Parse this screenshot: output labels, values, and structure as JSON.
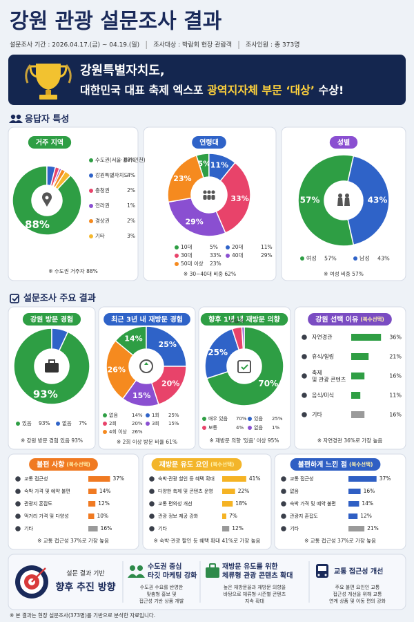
{
  "header": {
    "title": "강원 관광 설문조사 결과",
    "meta": [
      "설문조사 기간 : 2026.04.17.(금) ~ 04.19.(일)",
      "조사대상 : 박람회 현장 관람객",
      "조사인원 : 총 373명"
    ]
  },
  "banner": {
    "line1": "강원특별자치도,",
    "line2": "대한민국 대표 축제 엑스포 ",
    "highlight": "광역지자체 부문 ‘대상’",
    "line2_end": " 수상!"
  },
  "sections": [
    "응답자 특성",
    "설문조사 주요 결과"
  ],
  "chart_data": [
    {
      "type": "pie",
      "title": "거주 지역",
      "title_color": "#2e9e44",
      "categories": [
        "수도권(서울·경기·인천)",
        "강원특별자치도",
        "충청권",
        "전라권",
        "경상권",
        "기타"
      ],
      "values": [
        88,
        4,
        2,
        1,
        2,
        3
      ],
      "value_labels": [
        "88%",
        "4%",
        "2%",
        "1%",
        "2%",
        "3%"
      ],
      "colors": [
        "#2e9e44",
        "#2f63c8",
        "#e8436a",
        "#8a4fd1",
        "#f58a1f",
        "#f5b82e"
      ],
      "note": "※ 수도권 거주자 88%"
    },
    {
      "type": "pie",
      "title": "연령대",
      "title_color": "#2f63c8",
      "categories": [
        "10대",
        "20대",
        "30대",
        "40대",
        "50대 이상"
      ],
      "values": [
        5,
        11,
        33,
        29,
        23
      ],
      "value_labels": [
        "5%",
        "11%",
        "33%",
        "29%",
        "23%"
      ],
      "colors": [
        "#2e9e44",
        "#2f63c8",
        "#e8436a",
        "#8a4fd1",
        "#f58a1f"
      ],
      "note": "※ 30~40대 비중 62%"
    },
    {
      "type": "pie",
      "title": "성별",
      "title_color": "#8a4fd1",
      "categories": [
        "여성",
        "남성"
      ],
      "values": [
        57,
        43
      ],
      "value_labels": [
        "57%",
        "43%"
      ],
      "colors": [
        "#2e9e44",
        "#2f63c8"
      ],
      "note": "※ 여성 비중 57%"
    },
    {
      "type": "pie",
      "title": "강원 방문 경험",
      "title_color": "#2e9e44",
      "categories": [
        "있음",
        "없음"
      ],
      "values": [
        93,
        7
      ],
      "value_labels": [
        "93%",
        "7%"
      ],
      "colors": [
        "#2e9e44",
        "#2f63c8"
      ],
      "note": "※ 강원 방문 경험 있음 93%"
    },
    {
      "type": "pie",
      "title": "최근 3년 내 재방문 경험",
      "title_color": "#2f63c8",
      "categories": [
        "없음",
        "1회",
        "2회",
        "3회",
        "4회 이상"
      ],
      "values": [
        14,
        25,
        20,
        15,
        26
      ],
      "value_labels": [
        "14%",
        "25%",
        "20%",
        "15%",
        "26%"
      ],
      "colors": [
        "#2e9e44",
        "#2f63c8",
        "#e8436a",
        "#8a4fd1",
        "#f58a1f"
      ],
      "note": "※ 2회 이상 방문 비율 61%"
    },
    {
      "type": "pie",
      "title": "향후 1년 내 재방문 의향",
      "title_color": "#2e9e44",
      "categories": [
        "매우 있음",
        "있음",
        "보통",
        "없음"
      ],
      "values": [
        70,
        25,
        4,
        1
      ],
      "value_labels": [
        "70%",
        "25%",
        "4%",
        "1%"
      ],
      "colors": [
        "#2e9e44",
        "#2f63c8",
        "#e8436a",
        "#8a4fd1"
      ],
      "note": "※ 재방문 의향 '있음' 이상 95%"
    },
    {
      "type": "bar",
      "title": "강원 선택 이유",
      "subtitle": "(복수선택)",
      "title_color": "#7a4cc2",
      "categories": [
        "자연경관",
        "휴식/힐링",
        "축제 및 관광 콘텐츠",
        "음식/미식",
        "기타"
      ],
      "values": [
        36,
        21,
        16,
        11,
        16
      ],
      "value_labels": [
        "36%",
        "21%",
        "16%",
        "11%",
        "16%"
      ],
      "colors": [
        "#2f9e44",
        "#2f9e44",
        "#2f9e44",
        "#2f9e44",
        "#9a9a9a"
      ],
      "note": "※ 자연경관 36%로 가장 높음"
    },
    {
      "type": "bar",
      "title": "불편 사항",
      "subtitle": "(복수선택)",
      "title_color": "#f07a22",
      "categories": [
        "교통 접근성",
        "숙박 가격 및 예약 불편",
        "관광지 혼잡도",
        "먹거리 가격 및 다양성",
        "기타"
      ],
      "values": [
        37,
        14,
        12,
        10,
        16
      ],
      "value_labels": [
        "37%",
        "14%",
        "12%",
        "10%",
        "16%"
      ],
      "colors": [
        "#f07a22",
        "#f07a22",
        "#f07a22",
        "#f07a22",
        "#9a9a9a"
      ],
      "note": "※ 교통 접근성 37%로 가장 높음"
    },
    {
      "type": "bar",
      "title": "재방문 유도 요인",
      "subtitle": "(복수선택)",
      "title_color": "#f3b52a",
      "categories": [
        "숙박·관광 할인 등 혜택 확대",
        "다양한 축제 및 콘텐츠 운영",
        "교통 편의성 개선",
        "관광 정보 제공 강화",
        "기타"
      ],
      "values": [
        41,
        22,
        18,
        7,
        12
      ],
      "value_labels": [
        "41%",
        "22%",
        "18%",
        "7%",
        "12%"
      ],
      "colors": [
        "#f5b324",
        "#f5b324",
        "#f5b324",
        "#f5b324",
        "#9a9a9a"
      ],
      "note": "※ 숙박·관광 할인 등 혜택 확대 41%로 가장 높음"
    },
    {
      "type": "bar",
      "title": "불편하게 느낀 점",
      "subtitle": "(복수선택)",
      "title_color": "#2f5fc4",
      "categories": [
        "교통 접근성",
        "없음",
        "숙박 가격 및 예약 불편",
        "관광지 혼잡도",
        "기타"
      ],
      "values": [
        37,
        16,
        14,
        12,
        21
      ],
      "value_labels": [
        "37%",
        "16%",
        "14%",
        "12%",
        "21%"
      ],
      "colors": [
        "#2f5fc4",
        "#2f5fc4",
        "#2f5fc4",
        "#2f5fc4",
        "#9a9a9a"
      ],
      "note": "※ 교통 접근성 37%로 가장 높음"
    }
  ],
  "footer": {
    "lead": "설문 결과 기반",
    "title": "향후 추진 방향",
    "items": [
      {
        "title": [
          "수도권 중심",
          "타깃 마케팅 강화"
        ],
        "desc": [
          "수도권 수요를 반영한",
          "맞춤형 홍보 및",
          "접근성 기반 상품 개발"
        ]
      },
      {
        "title": [
          "재방문 유도를 위한",
          "체류형 관광 콘텐츠 확대"
        ],
        "desc": [
          "높은 재방문율과 재방문 의향을",
          "바탕으로 체류형·시즌별 콘텐츠",
          "지속 확대"
        ]
      },
      {
        "title": [
          "교통 접근성 개선"
        ],
        "desc": [
          "주요 불편 요인인 교통",
          "접근성 개선을 위해 교통",
          "연계 상품 및 이동 편의 강화"
        ]
      }
    ]
  },
  "footnote": "※ 본 결과는 현장 설문조사(373명)를 기반으로 분석한 자료입니다."
}
